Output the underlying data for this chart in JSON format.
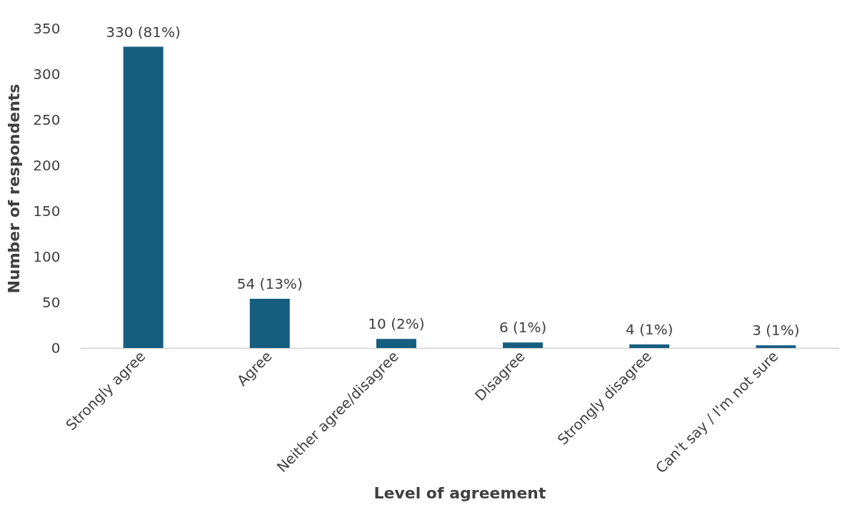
{
  "chart_data": {
    "type": "bar",
    "xlabel": "Level of agreement",
    "ylabel": "Number of respondents",
    "categories": [
      "Strongly agree",
      "Agree",
      "Neither agree/disagree",
      "Disagree",
      "Strongly disagree",
      "Can't say / I'm not sure"
    ],
    "values": [
      330,
      54,
      10,
      6,
      4,
      3
    ],
    "value_labels": [
      "330 (81%)",
      "54 (13%)",
      "10 (2%)",
      "6 (1%)",
      "4 (1%)",
      "3 (1%)"
    ],
    "color": "#165e80",
    "ylim": [
      0,
      350
    ],
    "yticks": [
      0,
      50,
      100,
      150,
      200,
      250,
      300,
      350
    ],
    "grid": false
  }
}
